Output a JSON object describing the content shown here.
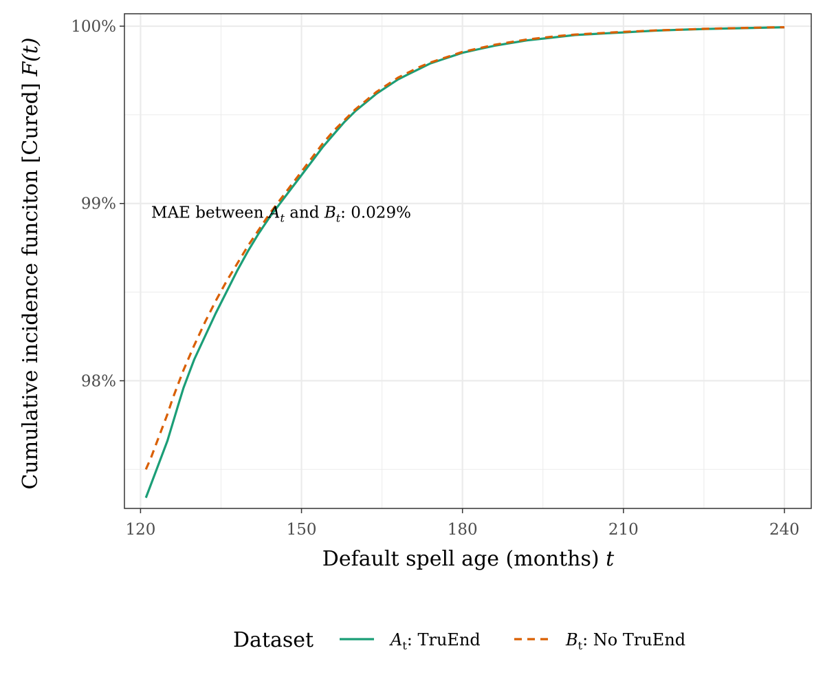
{
  "chart_data": {
    "type": "line",
    "xlabel_text": "Default spell age (months)",
    "xlabel_var": "t",
    "ylabel_text": "Cumulative incidence funciton [Cured]",
    "ylabel_var": "F(t)",
    "xlim": [
      117,
      245
    ],
    "ylim": [
      97.28,
      100.07
    ],
    "x_ticks": [
      120,
      150,
      180,
      210,
      240
    ],
    "x_tick_labels": [
      "120",
      "150",
      "180",
      "210",
      "240"
    ],
    "y_ticks": [
      98,
      99,
      100
    ],
    "y_tick_labels": [
      "98%",
      "99%",
      "100%"
    ],
    "grid": true,
    "annotation": {
      "prefix": "MAE between ",
      "a_sym": "A",
      "a_sub": "t",
      "middle": " and ",
      "b_sym": "B",
      "b_sub": "t",
      "suffix": ": 0.029%",
      "x": 122,
      "y": 98.95
    },
    "legend": {
      "position": "bottom",
      "title": "Dataset",
      "entries": [
        {
          "sym": "A",
          "sub": "t",
          "text": ": TruEnd"
        },
        {
          "sym": "B",
          "sub": "t",
          "text": ": No TruEnd"
        }
      ]
    },
    "series": [
      {
        "name": "A_t: TruEnd",
        "color": "#1b9e77",
        "dash": "solid",
        "x": [
          121,
          122,
          123,
          124,
          125,
          126,
          127,
          128,
          129,
          130,
          132,
          134,
          136,
          138,
          140,
          142,
          144,
          146,
          148,
          150,
          152,
          154,
          156,
          158,
          160,
          162,
          164,
          166,
          168,
          170,
          172,
          174,
          176,
          178,
          180,
          183,
          186,
          189,
          192,
          195,
          198,
          201,
          204,
          207,
          210,
          213,
          216,
          219,
          222,
          225,
          228,
          231,
          234,
          237,
          240
        ],
        "values": [
          97.34,
          97.42,
          97.5,
          97.58,
          97.66,
          97.76,
          97.86,
          97.96,
          98.04,
          98.12,
          98.25,
          98.38,
          98.5,
          98.62,
          98.73,
          98.83,
          98.92,
          99.0,
          99.08,
          99.16,
          99.24,
          99.32,
          99.39,
          99.46,
          99.52,
          99.57,
          99.62,
          99.66,
          99.7,
          99.73,
          99.76,
          99.79,
          99.81,
          99.83,
          99.85,
          99.87,
          99.89,
          99.905,
          99.92,
          99.93,
          99.94,
          99.95,
          99.955,
          99.96,
          99.965,
          99.97,
          99.975,
          99.978,
          99.981,
          99.984,
          99.986,
          99.988,
          99.99,
          99.992,
          99.994
        ]
      },
      {
        "name": "B_t: No TruEnd",
        "color": "#d95f02",
        "dash": "dashed",
        "x": [
          121,
          122,
          123,
          124,
          125,
          126,
          127,
          128,
          129,
          130,
          132,
          134,
          136,
          138,
          140,
          142,
          144,
          146,
          148,
          150,
          152,
          154,
          156,
          158,
          160,
          162,
          164,
          166,
          168,
          170,
          172,
          174,
          176,
          178,
          180,
          183,
          186,
          189,
          192,
          195,
          198,
          201,
          204,
          207,
          210,
          213,
          216,
          219,
          222,
          225,
          228,
          231,
          234,
          237,
          240
        ],
        "values": [
          97.5,
          97.57,
          97.65,
          97.73,
          97.81,
          97.9,
          97.98,
          98.06,
          98.13,
          98.2,
          98.33,
          98.45,
          98.56,
          98.66,
          98.76,
          98.85,
          98.94,
          99.02,
          99.1,
          99.18,
          99.26,
          99.34,
          99.41,
          99.47,
          99.53,
          99.58,
          99.63,
          99.67,
          99.71,
          99.74,
          99.77,
          99.795,
          99.815,
          99.835,
          99.855,
          99.875,
          99.895,
          99.91,
          99.925,
          99.935,
          99.945,
          99.953,
          99.958,
          99.963,
          99.968,
          99.972,
          99.976,
          99.979,
          99.982,
          99.985,
          99.987,
          99.989,
          99.991,
          99.993,
          99.994
        ]
      }
    ]
  }
}
